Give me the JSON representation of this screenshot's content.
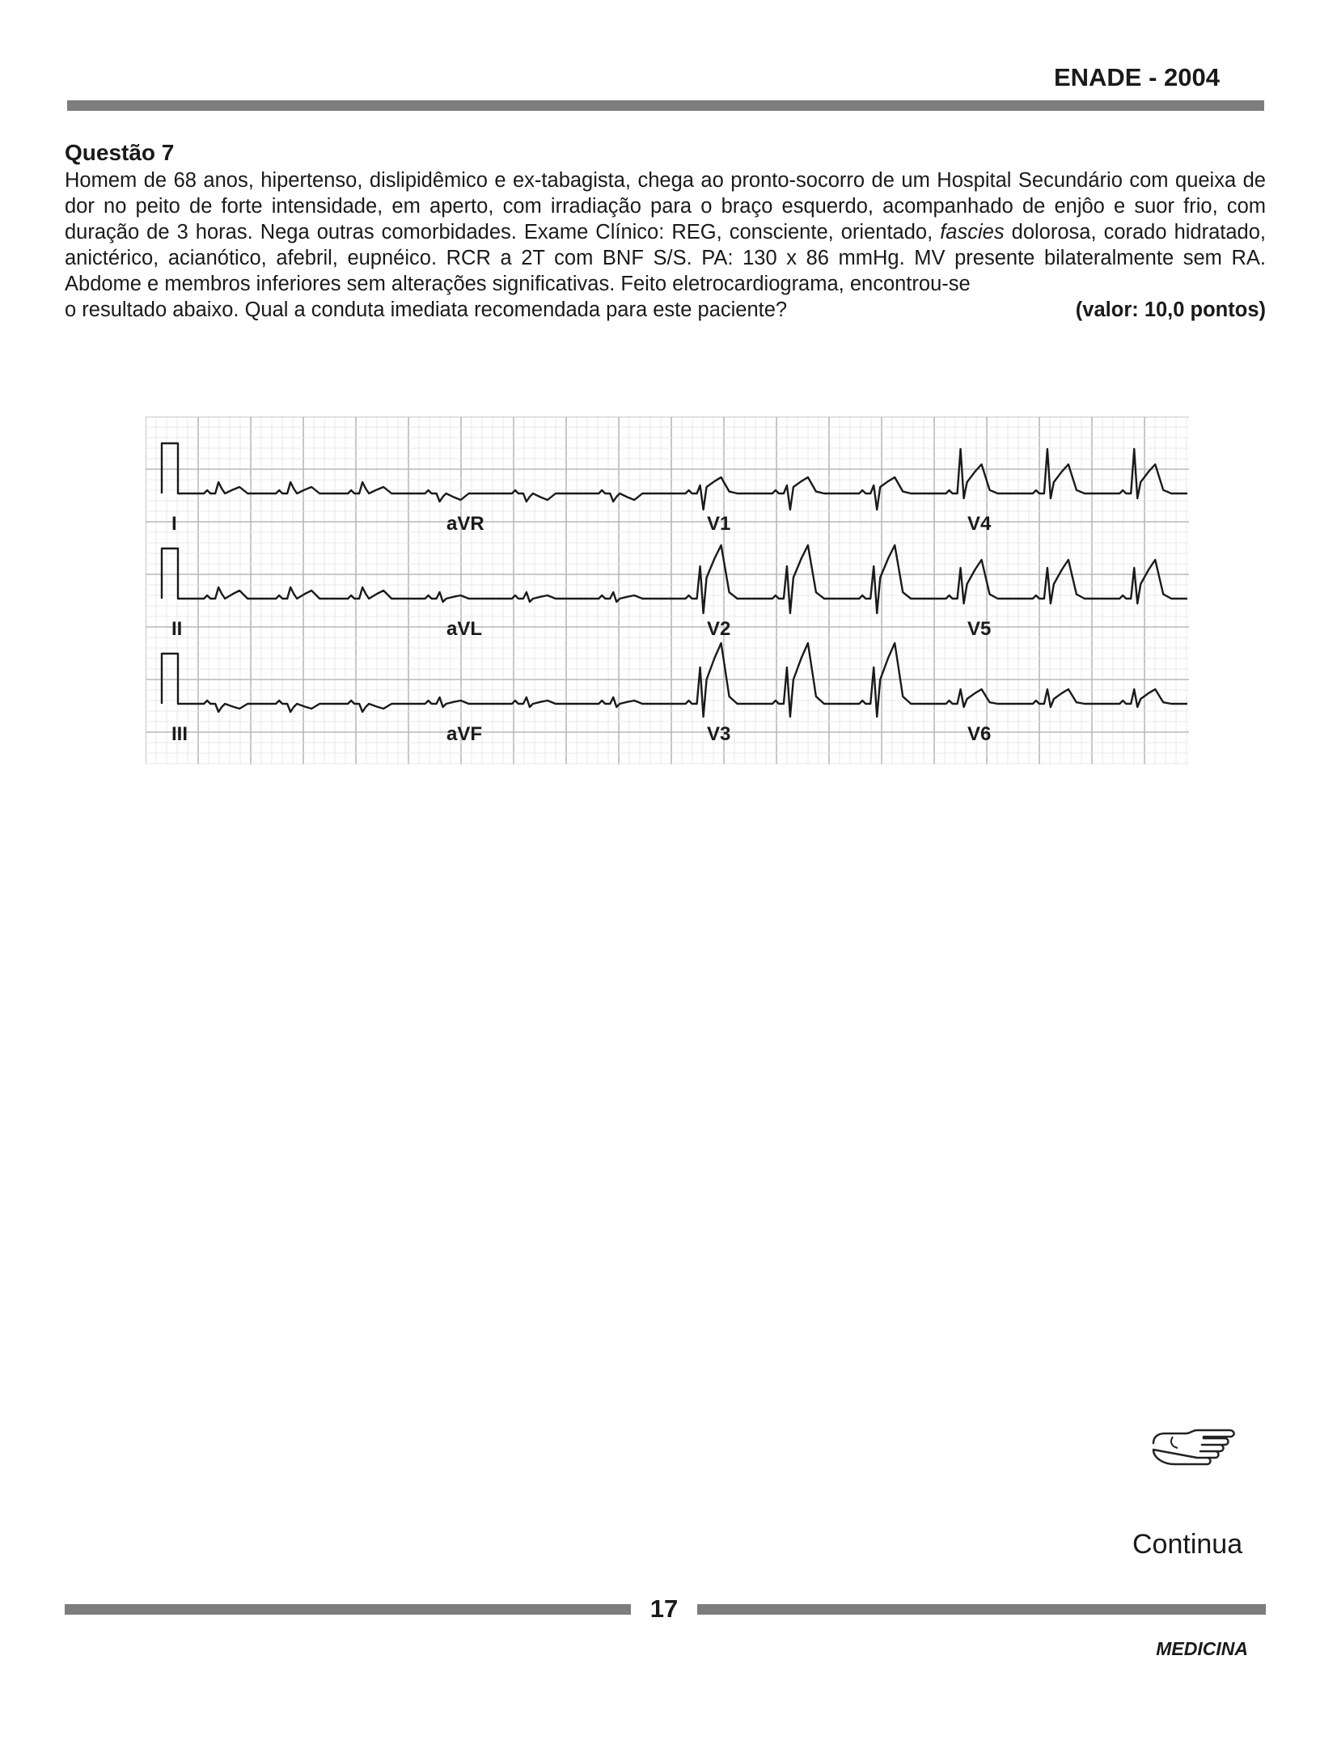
{
  "header": {
    "title": "ENADE - 2004"
  },
  "question": {
    "title": "Questão 7",
    "text_1": "Homem de 68 anos, hipertenso, dislipidêmico e ex-tabagista, chega ao pronto-socorro de um Hospital Secundário com queixa de dor no peito de forte intensidade, em aperto, com irradiação para o braço esquerdo, acompanhado de enjôo e suor frio, com duração de 3 horas. Nega outras comorbidades. Exame Clínico: REG, consciente, orientado,",
    "text_italic": "fascies",
    "text_2": "dolorosa, corado hidratado, anictérico, acianótico, afebril, eupnéico. RCR a 2T com BNF S/S. PA: 130 x 86 mmHg. MV presente bilateralmente sem RA. Abdome e membros inferiores sem alterações significativas. Feito eletrocardiograma, encontrou-se",
    "text_last": "o resultado abaixo. Qual a conduta imediata recomendada para este paciente?",
    "points": "(valor: 10,0 pontos)"
  },
  "ecg": {
    "leads": [
      "I",
      "aVR",
      "V1",
      "V4",
      "II",
      "aVL",
      "V2",
      "V5",
      "III",
      "aVF",
      "V3",
      "V6"
    ]
  },
  "footer": {
    "hand_icon": "pointing-hand-icon",
    "continue_label": "Continua",
    "page_number": "17",
    "subject": "MEDICINA"
  }
}
